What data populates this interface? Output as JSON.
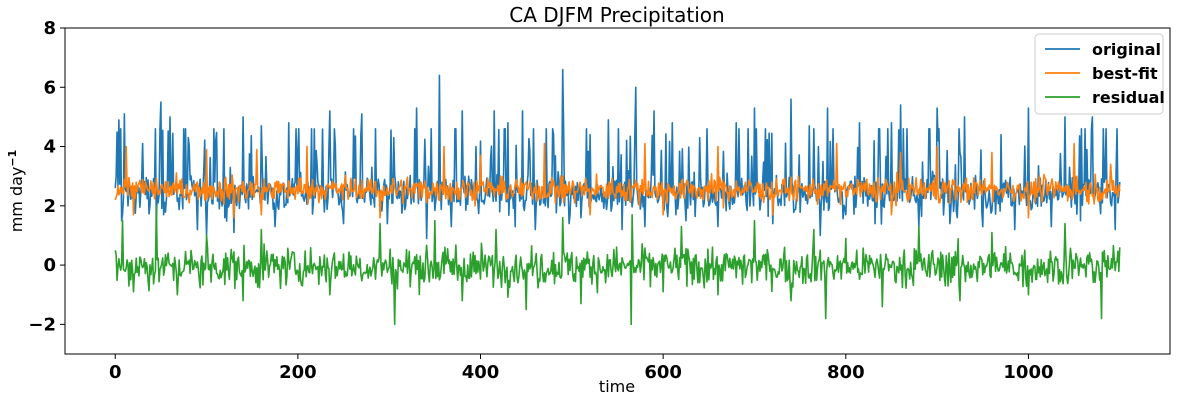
{
  "chart_data": {
    "type": "line",
    "title": "CA DJFM Precipitation",
    "xlabel": "time",
    "ylabel_base": "mm day",
    "ylabel_exp": "−1",
    "xlim": [
      -55,
      1155
    ],
    "ylim": [
      -3,
      8
    ],
    "xticks": [
      0,
      200,
      400,
      600,
      800,
      1000
    ],
    "yticks": [
      -2,
      0,
      2,
      4,
      6,
      8
    ],
    "ytick_labels": [
      "−2",
      "0",
      "2",
      "4",
      "6",
      "8"
    ],
    "legend_position": "top-right",
    "n_points": 1101,
    "series": [
      {
        "name": "original",
        "color": "#1f77b4",
        "keypoints": [
          [
            0,
            2.6
          ],
          [
            4,
            4.9
          ],
          [
            7,
            1.5
          ],
          [
            10,
            5.1
          ],
          [
            14,
            2.0
          ],
          [
            30,
            4.1
          ],
          [
            45,
            1.4
          ],
          [
            50,
            5.5
          ],
          [
            53,
            1.7
          ],
          [
            60,
            5.0
          ],
          [
            80,
            4.3
          ],
          [
            90,
            1.2
          ],
          [
            100,
            1.0
          ],
          [
            110,
            4.2
          ],
          [
            120,
            1.6
          ],
          [
            130,
            1.1
          ],
          [
            140,
            5.0
          ],
          [
            160,
            4.7
          ],
          [
            175,
            1.3
          ],
          [
            190,
            4.8
          ],
          [
            215,
            4.6
          ],
          [
            235,
            5.2
          ],
          [
            250,
            1.4
          ],
          [
            270,
            5.1
          ],
          [
            298,
            1.4
          ],
          [
            305,
            4.3
          ],
          [
            330,
            5.3
          ],
          [
            341,
            0.9
          ],
          [
            355,
            6.4
          ],
          [
            368,
            1.3
          ],
          [
            380,
            5.2
          ],
          [
            395,
            4.0
          ],
          [
            415,
            5.2
          ],
          [
            430,
            4.8
          ],
          [
            438,
            1.3
          ],
          [
            446,
            5.2
          ],
          [
            460,
            1.2
          ],
          [
            480,
            4.4
          ],
          [
            490,
            6.6
          ],
          [
            497,
            1.4
          ],
          [
            510,
            1.6
          ],
          [
            520,
            4.4
          ],
          [
            540,
            4.9
          ],
          [
            555,
            1.2
          ],
          [
            570,
            6.0
          ],
          [
            580,
            1.3
          ],
          [
            590,
            5.2
          ],
          [
            610,
            4.8
          ],
          [
            625,
            1.5
          ],
          [
            640,
            4.3
          ],
          [
            660,
            1.3
          ],
          [
            680,
            4.8
          ],
          [
            700,
            5.3
          ],
          [
            720,
            1.4
          ],
          [
            740,
            5.6
          ],
          [
            760,
            4.7
          ],
          [
            772,
            1.0
          ],
          [
            780,
            5.3
          ],
          [
            800,
            1.7
          ],
          [
            815,
            4.8
          ],
          [
            832,
            1.4
          ],
          [
            850,
            4.8
          ],
          [
            860,
            5.4
          ],
          [
            880,
            1.3
          ],
          [
            900,
            5.3
          ],
          [
            914,
            1.4
          ],
          [
            930,
            5.0
          ],
          [
            950,
            1.3
          ],
          [
            970,
            4.4
          ],
          [
            985,
            1.2
          ],
          [
            1000,
            5.3
          ],
          [
            1025,
            1.3
          ],
          [
            1040,
            5.0
          ],
          [
            1057,
            1.5
          ],
          [
            1070,
            5.0
          ],
          [
            1085,
            4.6
          ],
          [
            1095,
            1.2
          ],
          [
            1100,
            2.8
          ]
        ]
      },
      {
        "name": "best-fit",
        "color": "#ff7f0e",
        "keypoints": [
          [
            0,
            2.2
          ],
          [
            12,
            4.0
          ],
          [
            20,
            1.7
          ],
          [
            100,
            3.9
          ],
          [
            130,
            1.6
          ],
          [
            155,
            3.9
          ],
          [
            160,
            1.7
          ],
          [
            210,
            4.0
          ],
          [
            290,
            1.6
          ],
          [
            360,
            4.0
          ],
          [
            400,
            3.7
          ],
          [
            470,
            4.1
          ],
          [
            520,
            1.7
          ],
          [
            580,
            4.1
          ],
          [
            600,
            1.7
          ],
          [
            660,
            4.0
          ],
          [
            720,
            1.7
          ],
          [
            790,
            4.1
          ],
          [
            850,
            1.7
          ],
          [
            860,
            3.8
          ],
          [
            900,
            4.0
          ],
          [
            960,
            3.8
          ],
          [
            1000,
            1.6
          ],
          [
            1050,
            4.1
          ],
          [
            1090,
            3.4
          ],
          [
            1100,
            2.5
          ]
        ]
      },
      {
        "name": "residual",
        "color": "#2ca02c",
        "keypoints": [
          [
            0,
            0.5
          ],
          [
            8,
            1.5
          ],
          [
            20,
            -0.9
          ],
          [
            45,
            2.0
          ],
          [
            68,
            -1.0
          ],
          [
            100,
            1.0
          ],
          [
            140,
            -1.2
          ],
          [
            160,
            1.2
          ],
          [
            235,
            -1.0
          ],
          [
            290,
            1.4
          ],
          [
            306,
            -2.0
          ],
          [
            350,
            1.5
          ],
          [
            380,
            -1.2
          ],
          [
            417,
            1.2
          ],
          [
            450,
            -1.5
          ],
          [
            490,
            1.6
          ],
          [
            510,
            -1.3
          ],
          [
            565,
            -2.0
          ],
          [
            566,
            1.7
          ],
          [
            600,
            -0.9
          ],
          [
            620,
            1.3
          ],
          [
            660,
            -1.0
          ],
          [
            700,
            1.5
          ],
          [
            740,
            -1.2
          ],
          [
            765,
            1.2
          ],
          [
            778,
            -1.8
          ],
          [
            800,
            0.9
          ],
          [
            840,
            -1.4
          ],
          [
            880,
            1.3
          ],
          [
            925,
            -1.2
          ],
          [
            960,
            1.1
          ],
          [
            1000,
            -1.0
          ],
          [
            1040,
            1.4
          ],
          [
            1080,
            -1.8
          ],
          [
            1100,
            0.6
          ]
        ]
      }
    ]
  }
}
